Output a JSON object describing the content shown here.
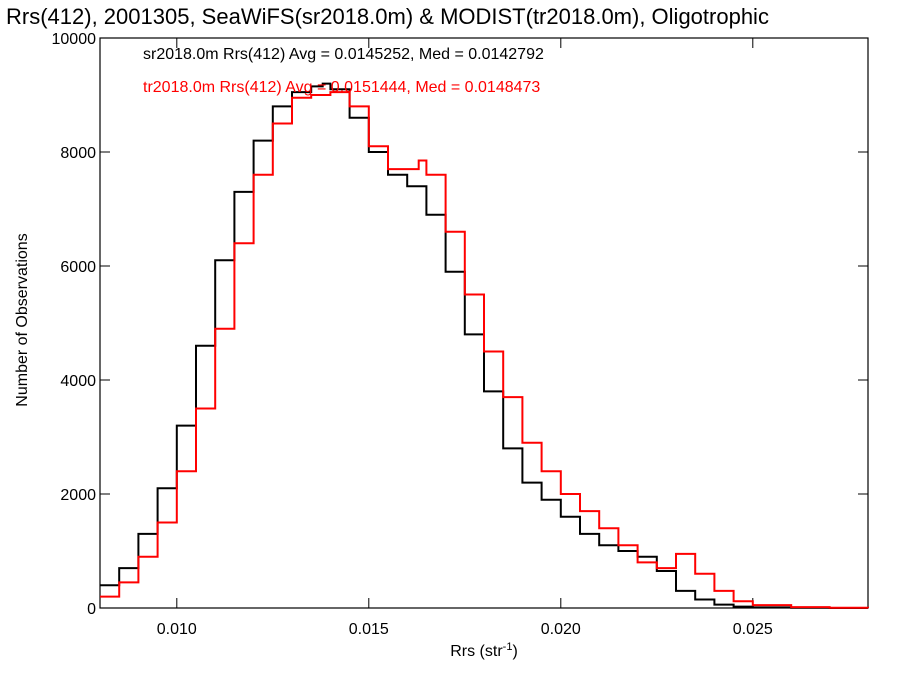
{
  "chart_data": {
    "type": "line",
    "title": "Rrs(412), 2001305, SeaWiFS(sr2018.0m) & MODIST(tr2018.0m), Oligotrophic",
    "xlabel": "Rrs (str",
    "xlabel_sup": "-1",
    "xlabel_end": ")",
    "ylabel": "Number of Observations",
    "xlim": [
      0.008,
      0.028
    ],
    "ylim": [
      0,
      10000
    ],
    "x_ticks": [
      0.01,
      0.015,
      0.02,
      0.025
    ],
    "x_tick_labels": [
      "0.010",
      "0.015",
      "0.020",
      "0.025"
    ],
    "y_ticks": [
      0,
      2000,
      4000,
      6000,
      8000,
      10000
    ],
    "y_tick_labels": [
      "0",
      "2000",
      "4000",
      "6000",
      "8000",
      "10000"
    ],
    "grid": false,
    "legend_position": "top-left",
    "series": [
      {
        "name": "sr2018.0m Rrs(412) Avg = 0.0145252, Med = 0.0142792",
        "color": "#000000",
        "x": [
          0.008,
          0.0085,
          0.009,
          0.0095,
          0.01,
          0.0105,
          0.011,
          0.0115,
          0.012,
          0.0125,
          0.013,
          0.0135,
          0.0138,
          0.014,
          0.0145,
          0.015,
          0.0155,
          0.016,
          0.0165,
          0.017,
          0.0175,
          0.018,
          0.0185,
          0.019,
          0.0195,
          0.02,
          0.0205,
          0.021,
          0.0215,
          0.022,
          0.0225,
          0.023,
          0.0235,
          0.024,
          0.0245,
          0.025,
          0.026,
          0.027,
          0.028
        ],
        "values": [
          400,
          700,
          1300,
          2100,
          3200,
          4600,
          6100,
          7300,
          8200,
          8800,
          9050,
          9150,
          9200,
          9100,
          8600,
          8000,
          7600,
          7400,
          6900,
          5900,
          4800,
          3800,
          2800,
          2200,
          1900,
          1600,
          1300,
          1100,
          1000,
          900,
          650,
          300,
          150,
          60,
          25,
          10,
          5,
          0,
          0
        ]
      },
      {
        "name": "tr2018.0m Rrs(412) Avg = 0.0151444, Med = 0.0148473",
        "color": "#ff0000",
        "x": [
          0.008,
          0.0085,
          0.009,
          0.0095,
          0.01,
          0.0105,
          0.011,
          0.0115,
          0.012,
          0.0125,
          0.013,
          0.0135,
          0.014,
          0.0145,
          0.015,
          0.0155,
          0.016,
          0.0163,
          0.0165,
          0.017,
          0.0175,
          0.018,
          0.0185,
          0.019,
          0.0195,
          0.02,
          0.0205,
          0.021,
          0.0215,
          0.022,
          0.0225,
          0.023,
          0.0235,
          0.024,
          0.0245,
          0.025,
          0.026,
          0.027,
          0.028
        ],
        "values": [
          200,
          450,
          900,
          1500,
          2400,
          3500,
          4900,
          6400,
          7600,
          8500,
          8950,
          9000,
          9050,
          8800,
          8100,
          7700,
          7700,
          7850,
          7600,
          6600,
          5500,
          4500,
          3700,
          2900,
          2400,
          2000,
          1700,
          1400,
          1100,
          800,
          700,
          950,
          600,
          300,
          120,
          50,
          15,
          5,
          0
        ]
      }
    ]
  }
}
